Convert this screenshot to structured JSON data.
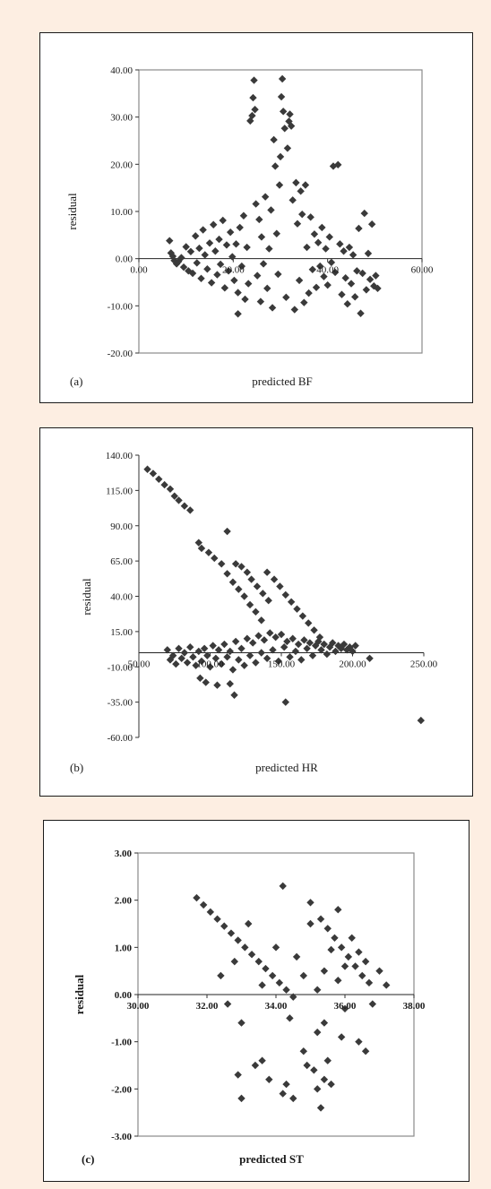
{
  "chart_data": [
    {
      "type": "scatter",
      "panel_label": "(a)",
      "xlabel": "predicted BF",
      "ylabel": "residual",
      "xlim": [
        0,
        60
      ],
      "ylim": [
        -20,
        40
      ],
      "x_ticks": [
        "0.00",
        "20.00",
        "40.00",
        "60.00"
      ],
      "y_ticks": [
        "40.00",
        "30.00",
        "20.00",
        "10.00",
        "0.00",
        "-10.00",
        "-20.00"
      ],
      "marker_color": "#3a3a3a",
      "points": [
        [
          6.5,
          3.8
        ],
        [
          6.8,
          1.2
        ],
        [
          7.2,
          0.5
        ],
        [
          7.5,
          -0.4
        ],
        [
          8,
          -1.1
        ],
        [
          8.4,
          -0.6
        ],
        [
          9,
          0.2
        ],
        [
          9.5,
          -1.8
        ],
        [
          10,
          2.5
        ],
        [
          10.5,
          -2.6
        ],
        [
          11,
          1.5
        ],
        [
          11.4,
          -3.1
        ],
        [
          12,
          4.8
        ],
        [
          12.3,
          -0.9
        ],
        [
          12.8,
          2.2
        ],
        [
          13.2,
          -4.2
        ],
        [
          13.6,
          6.1
        ],
        [
          14,
          0.8
        ],
        [
          14.5,
          -2.2
        ],
        [
          15,
          3.3
        ],
        [
          15.4,
          -5.1
        ],
        [
          15.8,
          7.2
        ],
        [
          16.2,
          1.6
        ],
        [
          16.6,
          -3.4
        ],
        [
          17,
          4.1
        ],
        [
          17.3,
          -1.2
        ],
        [
          17.8,
          8.1
        ],
        [
          18.2,
          -6.2
        ],
        [
          18.6,
          2.9
        ],
        [
          19,
          -2.6
        ],
        [
          19.4,
          5.6
        ],
        [
          19.8,
          0.4
        ],
        [
          20.2,
          -4.6
        ],
        [
          20.6,
          3.1
        ],
        [
          21,
          -7.2
        ],
        [
          21.4,
          6.6
        ],
        [
          21.8,
          -1.6
        ],
        [
          22.2,
          9.1
        ],
        [
          22.5,
          -8.6
        ],
        [
          22.9,
          2.4
        ],
        [
          23.2,
          -5.3
        ],
        [
          23.6,
          29.2
        ],
        [
          24,
          30.3
        ],
        [
          24.2,
          34.1
        ],
        [
          24.4,
          37.8
        ],
        [
          24.6,
          31.6
        ],
        [
          24.8,
          11.6
        ],
        [
          25.1,
          -3.6
        ],
        [
          25.5,
          8.3
        ],
        [
          25.8,
          -9.1
        ],
        [
          26,
          4.6
        ],
        [
          26.4,
          -1.1
        ],
        [
          26.8,
          13.1
        ],
        [
          27.2,
          -6.3
        ],
        [
          27.6,
          2.1
        ],
        [
          28,
          10.3
        ],
        [
          28.3,
          -10.4
        ],
        [
          28.6,
          25.2
        ],
        [
          28.9,
          19.6
        ],
        [
          29.2,
          5.3
        ],
        [
          29.5,
          -3.3
        ],
        [
          29.8,
          15.6
        ],
        [
          30,
          21.6
        ],
        [
          30.2,
          34.3
        ],
        [
          30.4,
          38.1
        ],
        [
          30.6,
          31.2
        ],
        [
          30.9,
          27.6
        ],
        [
          31.2,
          -8.2
        ],
        [
          31.5,
          23.4
        ],
        [
          31.8,
          29.1
        ],
        [
          32,
          30.6
        ],
        [
          32.3,
          28.1
        ],
        [
          32.6,
          12.4
        ],
        [
          33,
          -10.8
        ],
        [
          33.3,
          16.1
        ],
        [
          33.6,
          7.4
        ],
        [
          34,
          -4.6
        ],
        [
          34.3,
          14.3
        ],
        [
          34.6,
          9.4
        ],
        [
          35,
          -9.3
        ],
        [
          35.3,
          15.6
        ],
        [
          35.6,
          2.4
        ],
        [
          36,
          -7.3
        ],
        [
          36.4,
          8.8
        ],
        [
          36.8,
          -2.3
        ],
        [
          37.2,
          5.2
        ],
        [
          37.6,
          -6.1
        ],
        [
          38,
          3.4
        ],
        [
          38.4,
          -1.6
        ],
        [
          38.8,
          6.6
        ],
        [
          39.2,
          -3.8
        ],
        [
          39.6,
          2.1
        ],
        [
          40,
          -5.6
        ],
        [
          40.4,
          4.6
        ],
        [
          40.8,
          -0.8
        ],
        [
          41.2,
          19.6
        ],
        [
          41.6,
          -2.9
        ],
        [
          42.2,
          19.9
        ],
        [
          42.6,
          3.1
        ],
        [
          43,
          -7.6
        ],
        [
          43.4,
          1.6
        ],
        [
          43.8,
          -4.1
        ],
        [
          44.2,
          -9.6
        ],
        [
          44.6,
          2.4
        ],
        [
          45,
          -5.3
        ],
        [
          45.4,
          0.8
        ],
        [
          45.8,
          -8.1
        ],
        [
          46.2,
          -2.6
        ],
        [
          46.6,
          6.4
        ],
        [
          47,
          -11.6
        ],
        [
          47.4,
          -3.1
        ],
        [
          47.8,
          9.6
        ],
        [
          48.2,
          -6.6
        ],
        [
          48.6,
          1.1
        ],
        [
          49,
          -4.4
        ],
        [
          49.4,
          7.3
        ],
        [
          49.8,
          -5.8
        ],
        [
          50.2,
          -3.6
        ],
        [
          50.6,
          -6.3
        ],
        [
          21,
          -11.7
        ]
      ]
    },
    {
      "type": "scatter",
      "panel_label": "(b)",
      "xlabel": "predicted HR",
      "ylabel": "residual",
      "xlim": [
        50,
        250
      ],
      "ylim": [
        -60,
        140
      ],
      "x_ticks": [
        "50.00",
        "100.00",
        "150.00",
        "200.00",
        "250.00"
      ],
      "y_ticks": [
        "140.00",
        "115.00",
        "90.00",
        "65.00",
        "40.00",
        "15.00",
        "-10.00",
        "-35.00",
        "-60.00"
      ],
      "marker_color": "#3a3a3a",
      "points": [
        [
          56,
          130
        ],
        [
          60,
          127
        ],
        [
          64,
          123
        ],
        [
          68,
          119
        ],
        [
          72,
          116
        ],
        [
          75,
          111
        ],
        [
          78,
          108
        ],
        [
          82,
          104
        ],
        [
          86,
          101
        ],
        [
          92,
          78
        ],
        [
          94,
          74
        ],
        [
          99,
          71
        ],
        [
          103,
          67
        ],
        [
          108,
          63
        ],
        [
          112,
          56
        ],
        [
          116,
          50
        ],
        [
          120,
          45
        ],
        [
          124,
          40
        ],
        [
          128,
          34
        ],
        [
          132,
          29
        ],
        [
          136,
          23
        ],
        [
          140,
          57
        ],
        [
          145,
          52
        ],
        [
          149,
          47
        ],
        [
          153,
          41
        ],
        [
          157,
          36
        ],
        [
          161,
          31
        ],
        [
          165,
          26
        ],
        [
          169,
          21
        ],
        [
          173,
          16
        ],
        [
          177,
          11
        ],
        [
          180,
          6
        ],
        [
          112,
          86
        ],
        [
          118,
          63
        ],
        [
          122,
          61
        ],
        [
          126,
          57
        ],
        [
          129,
          52
        ],
        [
          133,
          47
        ],
        [
          137,
          42
        ],
        [
          141,
          37
        ],
        [
          70,
          2
        ],
        [
          72,
          -5
        ],
        [
          74,
          -2
        ],
        [
          76,
          -8
        ],
        [
          78,
          3
        ],
        [
          80,
          -4
        ],
        [
          82,
          0
        ],
        [
          84,
          -7
        ],
        [
          86,
          4
        ],
        [
          88,
          -3
        ],
        [
          90,
          -9
        ],
        [
          92,
          1
        ],
        [
          94,
          -6
        ],
        [
          96,
          3
        ],
        [
          98,
          -2
        ],
        [
          100,
          -10
        ],
        [
          102,
          5
        ],
        [
          104,
          -4
        ],
        [
          106,
          2
        ],
        [
          108,
          -8
        ],
        [
          110,
          6
        ],
        [
          112,
          -3
        ],
        [
          114,
          1
        ],
        [
          116,
          -12
        ],
        [
          118,
          8
        ],
        [
          120,
          -5
        ],
        [
          122,
          3
        ],
        [
          124,
          -9
        ],
        [
          126,
          10
        ],
        [
          128,
          -2
        ],
        [
          130,
          7
        ],
        [
          132,
          -7
        ],
        [
          134,
          12
        ],
        [
          136,
          0
        ],
        [
          138,
          9
        ],
        [
          140,
          -4
        ],
        [
          142,
          14
        ],
        [
          144,
          2
        ],
        [
          146,
          11
        ],
        [
          148,
          -6
        ],
        [
          150,
          13
        ],
        [
          152,
          4
        ],
        [
          154,
          8
        ],
        [
          156,
          -3
        ],
        [
          158,
          10
        ],
        [
          160,
          1
        ],
        [
          162,
          6
        ],
        [
          164,
          -5
        ],
        [
          166,
          9
        ],
        [
          168,
          3
        ],
        [
          170,
          7
        ],
        [
          172,
          -2
        ],
        [
          174,
          5
        ],
        [
          176,
          8
        ],
        [
          178,
          2
        ],
        [
          180,
          6
        ],
        [
          182,
          -1
        ],
        [
          184,
          4
        ],
        [
          186,
          7
        ],
        [
          188,
          1
        ],
        [
          190,
          5
        ],
        [
          192,
          3
        ],
        [
          194,
          6
        ],
        [
          196,
          2
        ],
        [
          198,
          4
        ],
        [
          200,
          1
        ],
        [
          202,
          5
        ],
        [
          93,
          -18
        ],
        [
          97,
          -21
        ],
        [
          105,
          -23
        ],
        [
          114,
          -22
        ],
        [
          117,
          -30
        ],
        [
          153,
          -35
        ],
        [
          212,
          -4
        ],
        [
          248,
          -48
        ]
      ]
    },
    {
      "type": "scatter",
      "panel_label": "(c)",
      "xlabel": "predicted ST",
      "ylabel": "residual",
      "xlim": [
        30,
        38
      ],
      "ylim": [
        -3,
        3
      ],
      "x_ticks": [
        "30.00",
        "32.00",
        "34.00",
        "36.00",
        "38.00"
      ],
      "y_ticks": [
        "3.00",
        "2.00",
        "1.00",
        "0.00",
        "-1.00",
        "-2.00",
        "-3.00"
      ],
      "marker_color": "#3a3a3a",
      "points": [
        [
          31.7,
          2.05
        ],
        [
          31.9,
          1.9
        ],
        [
          32.1,
          1.75
        ],
        [
          32.3,
          1.6
        ],
        [
          32.5,
          1.45
        ],
        [
          32.7,
          1.3
        ],
        [
          32.9,
          1.15
        ],
        [
          33.1,
          1.0
        ],
        [
          33.3,
          0.85
        ],
        [
          33.5,
          0.7
        ],
        [
          33.7,
          0.55
        ],
        [
          33.9,
          0.4
        ],
        [
          34.1,
          0.25
        ],
        [
          34.3,
          0.1
        ],
        [
          34.5,
          -0.05
        ],
        [
          32.4,
          0.4
        ],
        [
          32.6,
          -0.2
        ],
        [
          32.8,
          0.7
        ],
        [
          33.0,
          -0.6
        ],
        [
          33.2,
          1.5
        ],
        [
          33.4,
          -1.5
        ],
        [
          33.6,
          0.2
        ],
        [
          33.8,
          -1.8
        ],
        [
          34.0,
          1.0
        ],
        [
          34.2,
          -2.1
        ],
        [
          34.4,
          -0.5
        ],
        [
          34.6,
          0.8
        ],
        [
          34.8,
          -1.2
        ],
        [
          35.0,
          1.5
        ],
        [
          35.2,
          -0.8
        ],
        [
          35.4,
          0.5
        ],
        [
          35.6,
          -1.9
        ],
        [
          35.8,
          1.8
        ],
        [
          36.0,
          -0.3
        ],
        [
          36.2,
          1.2
        ],
        [
          36.4,
          -1.0
        ],
        [
          36.6,
          0.7
        ],
        [
          36.8,
          -0.2
        ],
        [
          37.0,
          0.5
        ],
        [
          37.2,
          0.2
        ],
        [
          34.2,
          2.3
        ],
        [
          35.0,
          1.95
        ],
        [
          35.3,
          1.6
        ],
        [
          35.5,
          1.4
        ],
        [
          35.7,
          1.2
        ],
        [
          35.9,
          1.0
        ],
        [
          36.1,
          0.8
        ],
        [
          36.3,
          0.6
        ],
        [
          36.5,
          0.4
        ],
        [
          36.7,
          0.25
        ],
        [
          35.1,
          -1.6
        ],
        [
          35.2,
          -2.0
        ],
        [
          35.3,
          -2.4
        ],
        [
          35.4,
          -1.8
        ],
        [
          35.5,
          -1.4
        ],
        [
          34.9,
          -1.5
        ],
        [
          34.5,
          -2.2
        ],
        [
          34.3,
          -1.9
        ],
        [
          33.0,
          -2.2
        ],
        [
          32.9,
          -1.7
        ],
        [
          33.6,
          -1.4
        ],
        [
          35.6,
          0.95
        ],
        [
          35.8,
          0.3
        ],
        [
          36.0,
          0.6
        ],
        [
          36.4,
          0.9
        ],
        [
          35.2,
          0.1
        ],
        [
          34.8,
          0.4
        ],
        [
          35.4,
          -0.6
        ],
        [
          35.9,
          -0.9
        ],
        [
          36.6,
          -1.2
        ]
      ]
    }
  ]
}
